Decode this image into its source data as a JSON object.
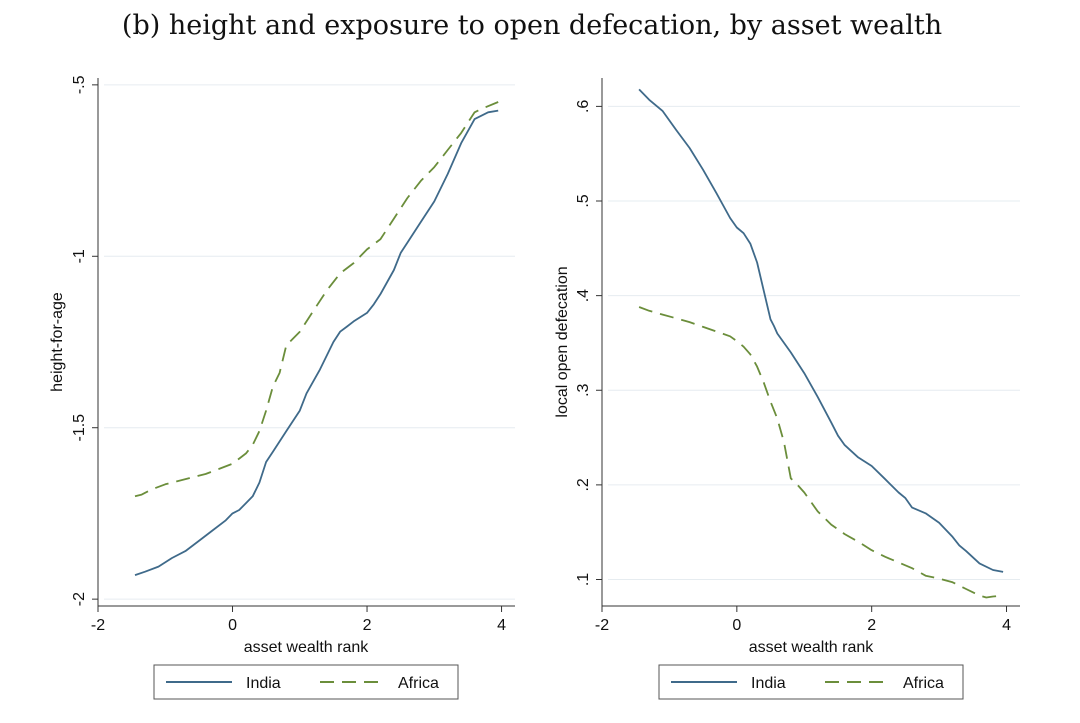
{
  "figure_title": "(b) height and exposure to open defecation, by asset wealth",
  "colors": {
    "India": "#3f6a8a",
    "Africa": "#6b8e3b"
  },
  "chart_data": [
    {
      "type": "line",
      "xlabel": "asset wealth rank",
      "ylabel": "height-for-age",
      "xlim": [
        -2.0,
        4.2
      ],
      "ylim": [
        -2.02,
        -0.48
      ],
      "xticks": [
        -2,
        0,
        2,
        4
      ],
      "xtick_labels": [
        "-2",
        "0",
        "2",
        "4"
      ],
      "yticks": [
        -2,
        -1.5,
        -1,
        -0.5
      ],
      "ytick_labels": [
        "-2",
        "-1.5",
        "-1",
        "-.5"
      ],
      "grid": true,
      "legend": {
        "position": "bottom",
        "entries": [
          "India",
          "Africa"
        ]
      },
      "series": [
        {
          "name": "India",
          "style": "solid",
          "x": [
            -1.45,
            -1.3,
            -1.1,
            -0.9,
            -0.7,
            -0.5,
            -0.3,
            -0.1,
            0.0,
            0.1,
            0.2,
            0.3,
            0.4,
            0.5,
            0.6,
            0.8,
            1.0,
            1.1,
            1.3,
            1.5,
            1.6,
            1.7,
            1.8,
            2.0,
            2.1,
            2.2,
            2.4,
            2.5,
            2.6,
            2.8,
            3.0,
            3.2,
            3.4,
            3.6,
            3.7,
            3.8,
            3.95
          ],
          "y": [
            -1.93,
            -1.92,
            -1.905,
            -1.88,
            -1.86,
            -1.83,
            -1.8,
            -1.77,
            -1.75,
            -1.74,
            -1.72,
            -1.7,
            -1.66,
            -1.6,
            -1.57,
            -1.51,
            -1.45,
            -1.4,
            -1.33,
            -1.25,
            -1.22,
            -1.205,
            -1.19,
            -1.165,
            -1.14,
            -1.11,
            -1.04,
            -0.99,
            -0.96,
            -0.9,
            -0.84,
            -0.76,
            -0.67,
            -0.6,
            -0.59,
            -0.58,
            -0.575
          ]
        },
        {
          "name": "Africa",
          "style": "dashed",
          "x": [
            -1.45,
            -1.35,
            -1.2,
            -1.0,
            -0.8,
            -0.6,
            -0.4,
            -0.2,
            0.0,
            0.1,
            0.2,
            0.3,
            0.4,
            0.5,
            0.6,
            0.7,
            0.8,
            0.9,
            1.0,
            1.2,
            1.4,
            1.6,
            1.8,
            2.0,
            2.2,
            2.4,
            2.6,
            2.8,
            3.0,
            3.2,
            3.4,
            3.6,
            3.7,
            3.95
          ],
          "y": [
            -1.7,
            -1.695,
            -1.68,
            -1.665,
            -1.655,
            -1.645,
            -1.635,
            -1.62,
            -1.605,
            -1.59,
            -1.575,
            -1.55,
            -1.51,
            -1.45,
            -1.38,
            -1.34,
            -1.26,
            -1.24,
            -1.22,
            -1.16,
            -1.1,
            -1.05,
            -1.02,
            -0.98,
            -0.95,
            -0.89,
            -0.83,
            -0.78,
            -0.74,
            -0.69,
            -0.64,
            -0.58,
            -0.57,
            -0.55
          ]
        }
      ]
    },
    {
      "type": "line",
      "xlabel": "asset wealth rank",
      "ylabel": "local open defecation",
      "xlim": [
        -2.0,
        4.2
      ],
      "ylim": [
        0.072,
        0.63
      ],
      "xticks": [
        -2,
        0,
        2,
        4
      ],
      "xtick_labels": [
        "-2",
        "0",
        "2",
        "4"
      ],
      "yticks": [
        0.1,
        0.2,
        0.3,
        0.4,
        0.5,
        0.6
      ],
      "ytick_labels": [
        ".1",
        ".2",
        ".3",
        ".4",
        ".5",
        ".6"
      ],
      "grid": true,
      "legend": {
        "position": "bottom",
        "entries": [
          "India",
          "Africa"
        ]
      },
      "series": [
        {
          "name": "India",
          "style": "solid",
          "x": [
            -1.45,
            -1.3,
            -1.1,
            -0.9,
            -0.7,
            -0.5,
            -0.3,
            -0.1,
            0.0,
            0.1,
            0.2,
            0.3,
            0.4,
            0.5,
            0.55,
            0.6,
            0.8,
            1.0,
            1.2,
            1.4,
            1.5,
            1.6,
            1.8,
            2.0,
            2.2,
            2.4,
            2.5,
            2.6,
            2.8,
            3.0,
            3.2,
            3.3,
            3.4,
            3.6,
            3.8,
            3.95
          ],
          "y": [
            0.618,
            0.607,
            0.595,
            0.575,
            0.556,
            0.533,
            0.508,
            0.482,
            0.472,
            0.466,
            0.455,
            0.435,
            0.405,
            0.375,
            0.368,
            0.36,
            0.34,
            0.318,
            0.293,
            0.266,
            0.252,
            0.242,
            0.229,
            0.22,
            0.206,
            0.192,
            0.186,
            0.176,
            0.17,
            0.16,
            0.145,
            0.136,
            0.13,
            0.117,
            0.11,
            0.108
          ]
        },
        {
          "name": "Africa",
          "style": "dashed",
          "x": [
            -1.45,
            -1.3,
            -1.1,
            -0.9,
            -0.7,
            -0.5,
            -0.3,
            -0.1,
            0.0,
            0.1,
            0.2,
            0.3,
            0.4,
            0.5,
            0.6,
            0.7,
            0.8,
            0.9,
            1.0,
            1.2,
            1.4,
            1.6,
            1.8,
            2.0,
            2.2,
            2.4,
            2.6,
            2.8,
            3.0,
            3.2,
            3.4,
            3.6,
            3.7,
            3.8,
            3.95
          ],
          "y": [
            0.388,
            0.384,
            0.38,
            0.376,
            0.372,
            0.367,
            0.362,
            0.357,
            0.352,
            0.346,
            0.338,
            0.325,
            0.308,
            0.288,
            0.27,
            0.245,
            0.207,
            0.2,
            0.192,
            0.172,
            0.158,
            0.148,
            0.14,
            0.131,
            0.124,
            0.118,
            0.112,
            0.104,
            0.101,
            0.097,
            0.09,
            0.083,
            0.081,
            0.082,
            0.083
          ]
        }
      ]
    }
  ]
}
